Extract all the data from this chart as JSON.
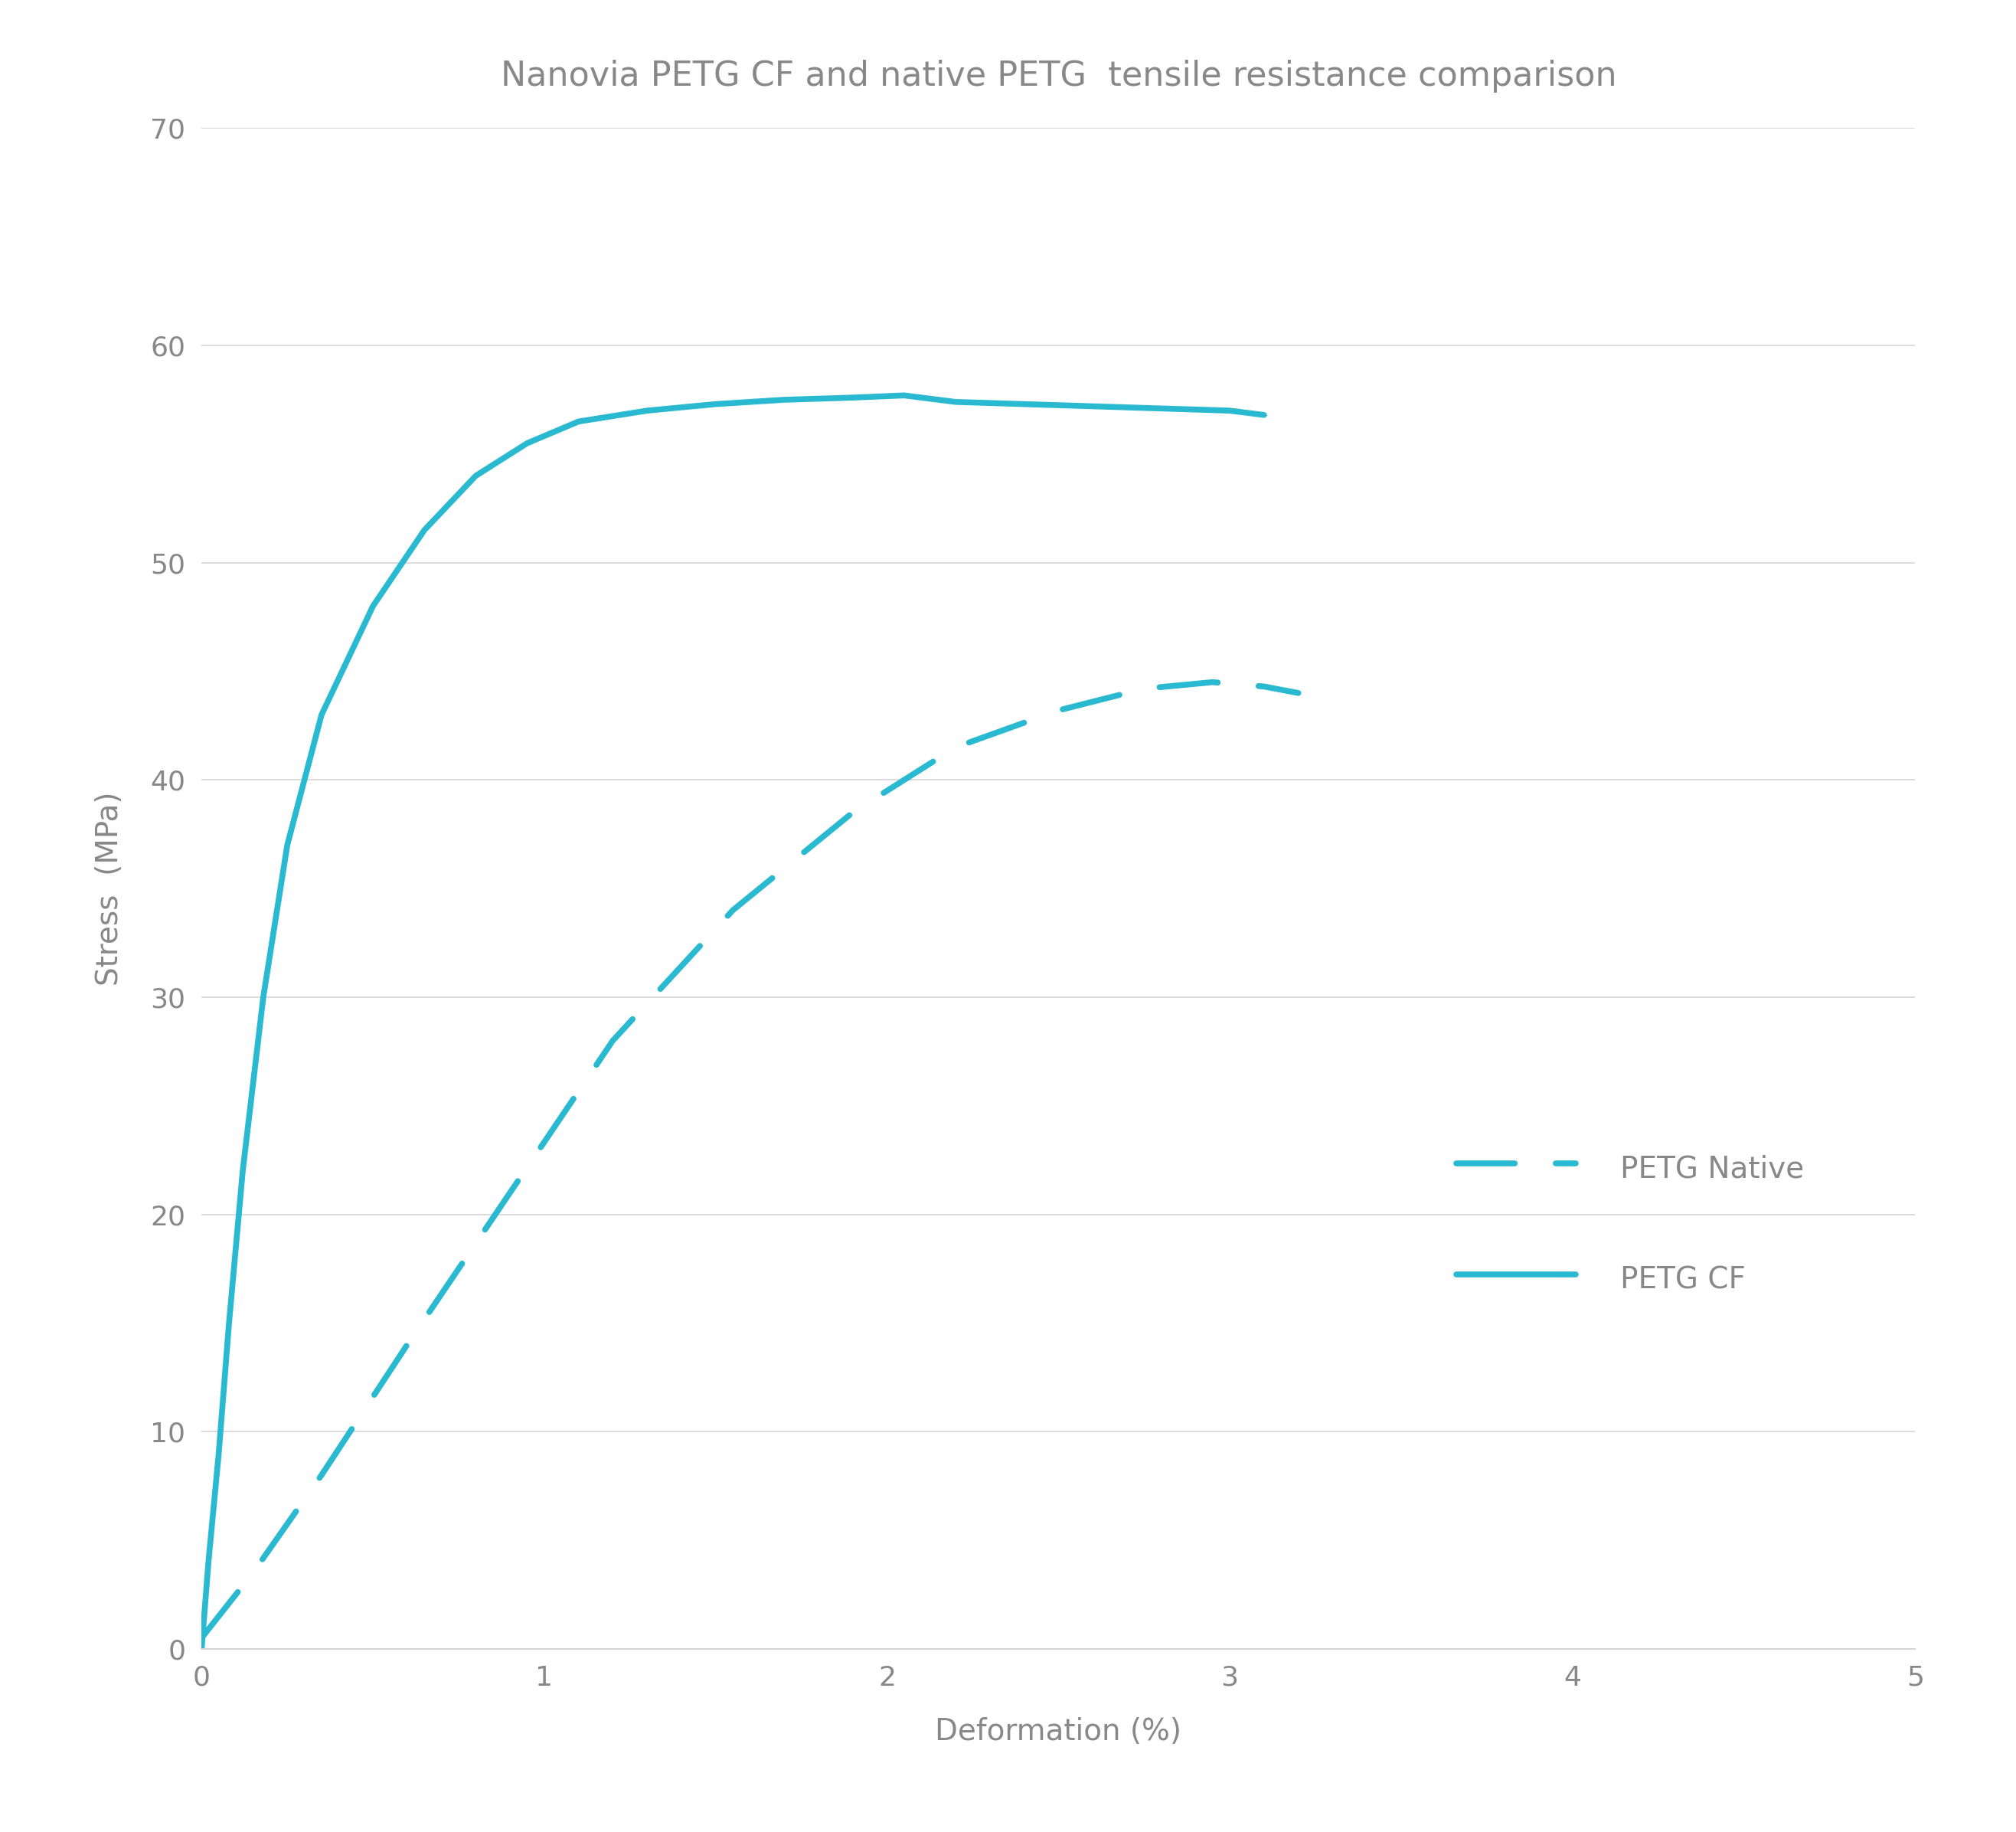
{
  "title": "Nanovia PETG CF and native PETG  tensile resistance comparison",
  "xlabel": "Deformation (%)",
  "ylabel": "Stress  (MPa)",
  "xlim": [
    0,
    5
  ],
  "ylim": [
    0,
    70
  ],
  "xticks": [
    0,
    1,
    2,
    3,
    4,
    5
  ],
  "yticks": [
    0,
    10,
    20,
    30,
    40,
    50,
    60,
    70
  ],
  "background_color": "#ffffff",
  "line_color": "#29B9D0",
  "grid_color": "#d5d5d5",
  "text_color": "#888888",
  "petg_cf": {
    "x": [
      0,
      0.02,
      0.05,
      0.08,
      0.12,
      0.18,
      0.25,
      0.35,
      0.5,
      0.65,
      0.8,
      0.95,
      1.1,
      1.3,
      1.5,
      1.7,
      1.9,
      2.05,
      2.2,
      2.4,
      2.6,
      2.8,
      3.0,
      3.1
    ],
    "y": [
      0,
      4,
      9,
      15,
      22,
      30,
      37,
      43,
      48,
      51.5,
      54,
      55.5,
      56.5,
      57.0,
      57.3,
      57.5,
      57.6,
      57.7,
      57.4,
      57.3,
      57.2,
      57.1,
      57.0,
      56.8
    ]
  },
  "petg_native": {
    "x": [
      0,
      0.15,
      0.35,
      0.6,
      0.9,
      1.2,
      1.55,
      1.9,
      2.2,
      2.5,
      2.75,
      2.95,
      3.1,
      3.2
    ],
    "y": [
      0.5,
      3.5,
      8,
      14,
      21,
      28,
      34,
      38.5,
      41.5,
      43.2,
      44.2,
      44.5,
      44.3,
      44.0
    ]
  },
  "legend_native": "PETG Native",
  "legend_cf": "PETG CF",
  "title_fontsize": 32,
  "label_fontsize": 28,
  "tick_fontsize": 26,
  "legend_fontsize": 28,
  "line_width": 5.5
}
